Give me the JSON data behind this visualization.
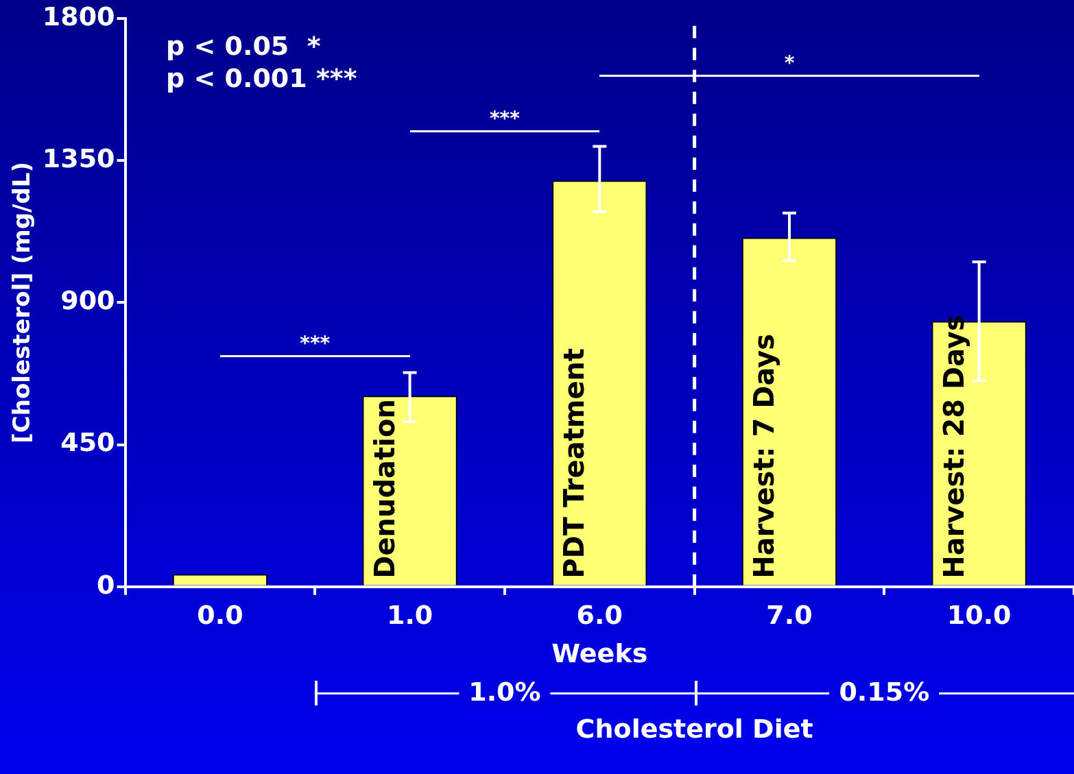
{
  "chart_data": {
    "type": "bar",
    "xlabel": "Weeks",
    "ylabel": "[Cholesterol] (mg/dL)",
    "categories": [
      "0.0",
      "1.0",
      "6.0",
      "7.0",
      "10.0"
    ],
    "values": [
      40,
      605,
      1287,
      1106,
      841
    ],
    "errors": [
      null,
      [
        523,
        678
      ],
      [
        1188,
        1395
      ],
      [
        1033,
        1184
      ],
      [
        653,
        1029
      ]
    ],
    "color": "#ffff73",
    "ylim": [
      0,
      1800
    ],
    "yticks": [
      0,
      450,
      900,
      1350,
      1800
    ],
    "grid": false,
    "legend": false,
    "annotations": [
      "p < 0.05  *",
      "p < 0.001 ***",
      "***",
      "***",
      "*",
      {
        "text": "Denudation",
        "x": "1.0",
        "y": 0
      },
      {
        "text": "PDT Treatment",
        "x": "6.0",
        "y": 0
      },
      {
        "text": "Harvest: 7 Days",
        "x": "7.0",
        "y": 0
      },
      {
        "text": "Harvest: 28 Days",
        "x": "10.0",
        "y": 0
      },
      "1.0%",
      "0.15%",
      "Cholesterol Diet"
    ]
  }
}
